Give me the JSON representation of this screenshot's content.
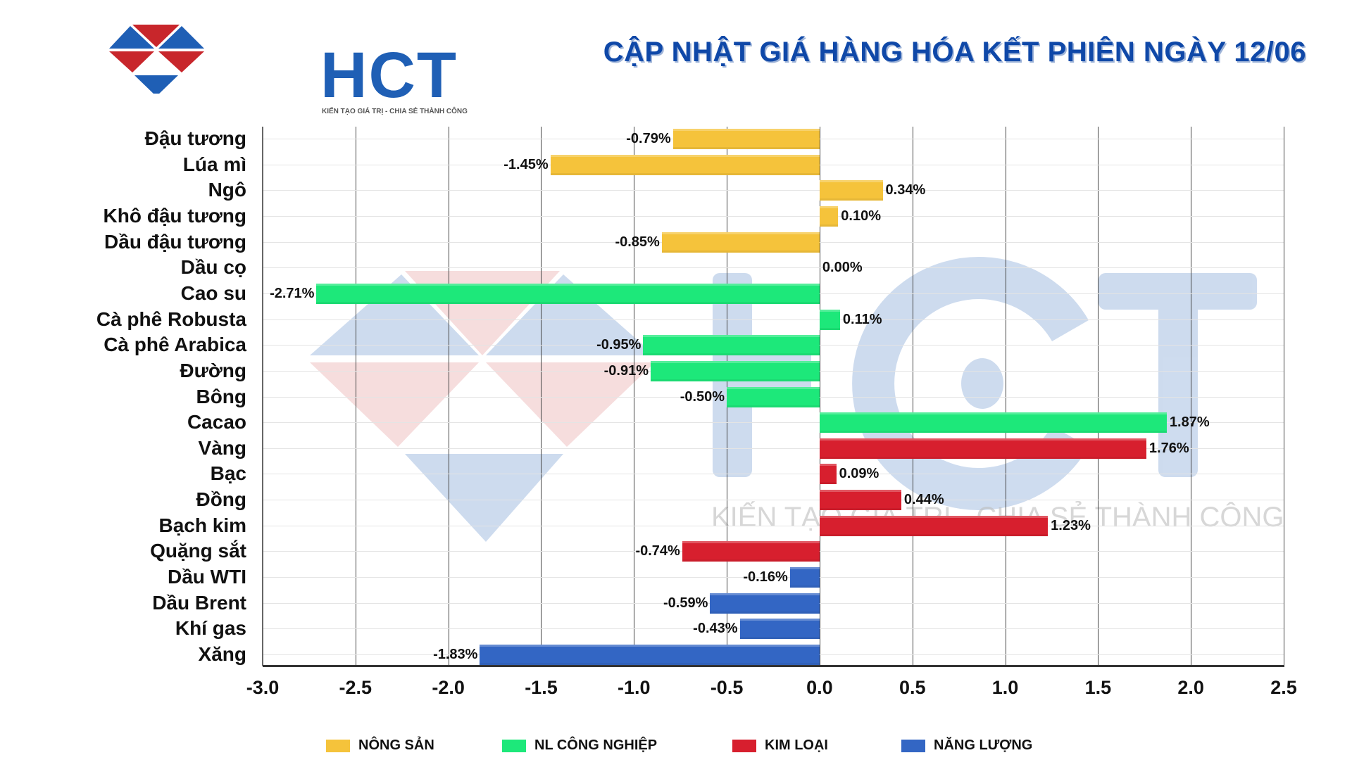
{
  "header": {
    "logo_text": "HCT",
    "logo_tagline": "KIẾN TẠO GIÁ TRỊ - CHIA SẺ THÀNH CÔNG",
    "title": "CẬP NHẬT GIÁ HÀNG HÓA KẾT PHIÊN NGÀY 12/06"
  },
  "watermark": {
    "text": "HCT",
    "tagline": "KIẾN TẠO GIÁ TRỊ - CHIA SẺ THÀNH CÔNG"
  },
  "colors": {
    "nong_san": "#f5c33b",
    "nl_cong_nghiep": "#1de87a",
    "kim_loai": "#d71f2e",
    "nang_luong": "#3366c4",
    "title": "#0f48a8",
    "logo_blue": "#1f5fb5",
    "logo_red": "#c8262b"
  },
  "legend": [
    {
      "label": "NÔNG SẢN",
      "color": "#f5c33b"
    },
    {
      "label": "NL CÔNG NGHIỆP",
      "color": "#1de87a"
    },
    {
      "label": "KIM LOẠI",
      "color": "#d71f2e"
    },
    {
      "label": "NĂNG LƯỢNG",
      "color": "#3366c4"
    }
  ],
  "chart_data": {
    "type": "bar",
    "orientation": "horizontal",
    "title": "CẬP NHẬT GIÁ HÀNG HÓA KẾT PHIÊN NGÀY 12/06",
    "xlabel": "",
    "ylabel": "",
    "xlim": [
      -3.0,
      2.5
    ],
    "x_ticks": [
      "-3.0",
      "-2.5",
      "-2.0",
      "-1.5",
      "-1.0",
      "-0.5",
      "0.0",
      "0.5",
      "1.0",
      "1.5",
      "2.0",
      "2.5"
    ],
    "grid": {
      "vertical": true,
      "horizontal": true
    },
    "legend_position": "bottom",
    "categories": [
      "Đậu tương",
      "Lúa mì",
      "Ngô",
      "Khô đậu tương",
      "Dầu đậu tương",
      "Dầu cọ",
      "Cao su",
      "Cà phê Robusta",
      "Cà phê Arabica",
      "Đường",
      "Bông",
      "Cacao",
      "Vàng",
      "Bạc",
      "Đồng",
      "Bạch kim",
      "Quặng sắt",
      "Dầu WTI",
      "Dầu Brent",
      "Khí gas",
      "Xăng"
    ],
    "values": [
      -0.79,
      -1.45,
      0.34,
      0.1,
      -0.85,
      0.0,
      -2.71,
      0.11,
      -0.95,
      -0.91,
      -0.5,
      1.87,
      1.76,
      0.09,
      0.44,
      1.23,
      -0.74,
      -0.16,
      -0.59,
      -0.43,
      -1.83
    ],
    "labels": [
      "-0.79%",
      "-1.45%",
      "0.34%",
      "0.10%",
      "-0.85%",
      "0.00%",
      "-2.71%",
      "0.11%",
      "-0.95%",
      "-0.91%",
      "-0.50%",
      "1.87%",
      "1.76%",
      "0.09%",
      "0.44%",
      "1.23%",
      "-0.74%",
      "-0.16%",
      "-0.59%",
      "-0.43%",
      "-1.83%"
    ],
    "groups": [
      "NÔNG SẢN",
      "NÔNG SẢN",
      "NÔNG SẢN",
      "NÔNG SẢN",
      "NÔNG SẢN",
      "NÔNG SẢN",
      "NL CÔNG NGHIỆP",
      "NL CÔNG NGHIỆP",
      "NL CÔNG NGHIỆP",
      "NL CÔNG NGHIỆP",
      "NL CÔNG NGHIỆP",
      "NL CÔNG NGHIỆP",
      "KIM LOẠI",
      "KIM LOẠI",
      "KIM LOẠI",
      "KIM LOẠI",
      "KIM LOẠI",
      "NĂNG LƯỢNG",
      "NĂNG LƯỢNG",
      "NĂNG LƯỢNG",
      "NĂNG LƯỢNG"
    ],
    "series": [
      {
        "name": "NÔNG SẢN",
        "categories": [
          "Đậu tương",
          "Lúa mì",
          "Ngô",
          "Khô đậu tương",
          "Dầu đậu tương",
          "Dầu cọ"
        ],
        "values": [
          -0.79,
          -1.45,
          0.34,
          0.1,
          -0.85,
          0.0
        ]
      },
      {
        "name": "NL CÔNG NGHIỆP",
        "categories": [
          "Cao su",
          "Cà phê Robusta",
          "Cà phê Arabica",
          "Đường",
          "Bông",
          "Cacao"
        ],
        "values": [
          -2.71,
          0.11,
          -0.95,
          -0.91,
          -0.5,
          1.87
        ]
      },
      {
        "name": "KIM LOẠI",
        "categories": [
          "Vàng",
          "Bạc",
          "Đồng",
          "Bạch kim",
          "Quặng sắt"
        ],
        "values": [
          1.76,
          0.09,
          0.44,
          1.23,
          -0.74
        ]
      },
      {
        "name": "NĂNG LƯỢNG",
        "categories": [
          "Dầu WTI",
          "Dầu Brent",
          "Khí gas",
          "Xăng"
        ],
        "values": [
          -0.16,
          -0.59,
          -0.43,
          -1.83
        ]
      }
    ]
  }
}
